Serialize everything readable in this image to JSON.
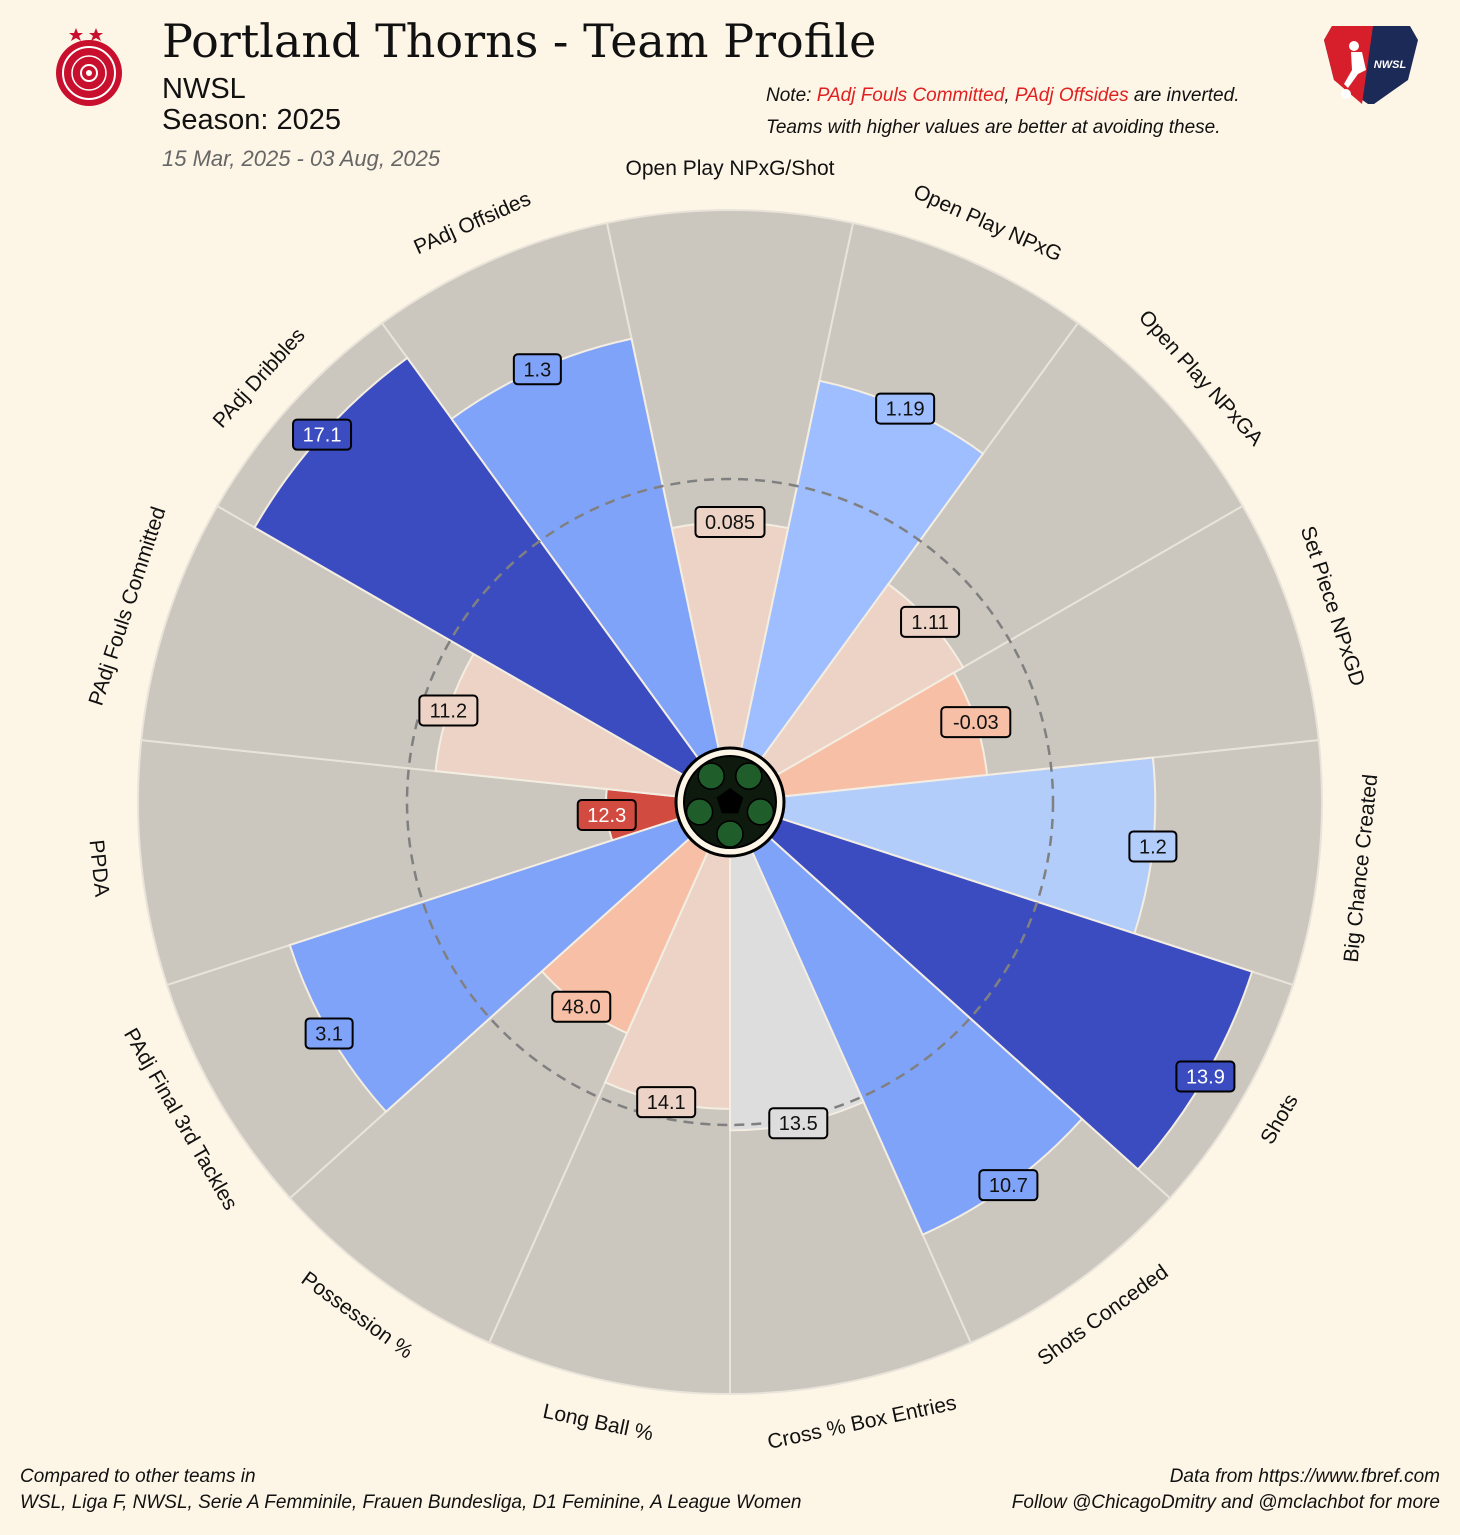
{
  "header": {
    "title": "Portland Thorns - Team Profile",
    "league": "NWSL",
    "season": "Season: 2025",
    "date_range": "15 Mar, 2025 - 03 Aug, 2025"
  },
  "note": {
    "prefix": "Note: ",
    "metric_1": "PAdj Fouls Committed",
    "separator": ", ",
    "metric_2": "PAdj Offsides",
    "suffix": " are inverted.",
    "line2": "Teams with higher values are better at avoiding these."
  },
  "footer": {
    "left_line1": "Compared to other teams in",
    "left_line2": "WSL, Liga F, NWSL, Serie A Femminile, Frauen Bundesliga, D1 Feminine, A League Women",
    "right_line1": "Data from https://www.fbref.com",
    "right_line2": "Follow @ChicagoDmitry and @mclachbot for more"
  },
  "logos": {
    "team_logo_icon": "portland-thorns-crest-icon",
    "league_logo_icon": "nwsl-shield-icon",
    "league_logo_text": "NWSL",
    "center_icon": "soccer-ball-icon"
  },
  "colors": {
    "background": "#fdf5e6",
    "slice_background": "#cbc6be",
    "strong_blue": "#3b4cc0",
    "medium_blue": "#80a3fa",
    "light_blue": "#9ebeff",
    "pale_blue": "#b3cdfb",
    "neutral": "#dddddd",
    "pale_peach": "#ecd3c5",
    "peach": "#f7bfa6",
    "red": "#d24b40",
    "reference_circle": "#808080"
  },
  "chart_data": {
    "type": "pie",
    "subtype": "percentile-radar",
    "range": [
      0,
      100
    ],
    "reference_ring": 50,
    "metrics": [
      {
        "label": "Open Play NPxG/Shot",
        "value_label": "0.085",
        "percentile": 42,
        "color": "#ecd3c5"
      },
      {
        "label": "Open Play NPxG",
        "value_label": "1.19",
        "percentile": 70,
        "color": "#9ebeff"
      },
      {
        "label": "Open Play NPxGA",
        "value_label": "1.11",
        "percentile": 40,
        "color": "#ecd3c5"
      },
      {
        "label": "Set Piece NPxGD",
        "value_label": "-0.03",
        "percentile": 38,
        "color": "#f7bfa6"
      },
      {
        "label": "Big Chance Created",
        "value_label": "1.2",
        "percentile": 69,
        "color": "#b3cdfb"
      },
      {
        "label": "Shots",
        "value_label": "13.9",
        "percentile": 92,
        "color": "#3b4cc0"
      },
      {
        "label": "Shots Conceded",
        "value_label": "10.7",
        "percentile": 78,
        "color": "#80a3fa"
      },
      {
        "label": "Cross % Box Entries",
        "value_label": "13.5",
        "percentile": 51,
        "color": "#dddddd"
      },
      {
        "label": "Long Ball %",
        "value_label": "14.1",
        "percentile": 47,
        "color": "#ecd3c5"
      },
      {
        "label": "Possession %",
        "value_label": "48.0",
        "percentile": 37,
        "color": "#f7bfa6"
      },
      {
        "label": "PAdj Final 3rd Tackles",
        "value_label": "3.1",
        "percentile": 76,
        "color": "#80a3fa"
      },
      {
        "label": "PPDA",
        "value_label": "12.3",
        "percentile": 13,
        "color": "#d24b40"
      },
      {
        "label": "PAdj Fouls Committed",
        "value_label": "11.2",
        "percentile": 45,
        "color": "#ecd3c5"
      },
      {
        "label": "PAdj Dribbles",
        "value_label": "17.1",
        "percentile": 92,
        "color": "#3b4cc0"
      },
      {
        "label": "PAdj Offsides",
        "value_label": "1.3",
        "percentile": 78,
        "color": "#80a3fa"
      }
    ]
  }
}
